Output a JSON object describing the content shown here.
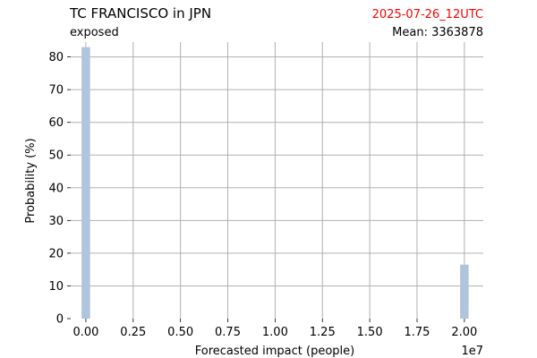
{
  "chart_data": {
    "type": "bar",
    "title": "TC FRANCISCO in JPN",
    "subtitle": "exposed",
    "date_label": "2025-07-26_12UTC",
    "mean_label": "Mean: 3363878",
    "xlabel": "Forecasted impact (people)",
    "ylabel": "Probability (%)",
    "x_offset_label": "1e7",
    "xlim": [
      -0.08,
      2.1
    ],
    "ylim": [
      0,
      87
    ],
    "x_ticks": [
      0.0,
      0.25,
      0.5,
      0.75,
      1.0,
      1.25,
      1.5,
      1.75,
      2.0
    ],
    "x_tick_labels": [
      "0.00",
      "0.25",
      "0.50",
      "0.75",
      "1.00",
      "1.25",
      "1.50",
      "1.75",
      "2.00"
    ],
    "y_ticks": [
      0,
      10,
      20,
      30,
      40,
      50,
      60,
      70,
      80
    ],
    "y_tick_labels": [
      "0",
      "10",
      "20",
      "30",
      "40",
      "50",
      "60",
      "70",
      "80"
    ],
    "bar_width": 0.045,
    "grid": true,
    "bars": [
      {
        "x": 0.0,
        "value": 83
      },
      {
        "x": 2.0,
        "value": 16.5
      }
    ],
    "colors": {
      "bar": "#b0c4de",
      "grid": "#b0b0b0",
      "date": "#ff0000",
      "text": "#000000"
    }
  }
}
